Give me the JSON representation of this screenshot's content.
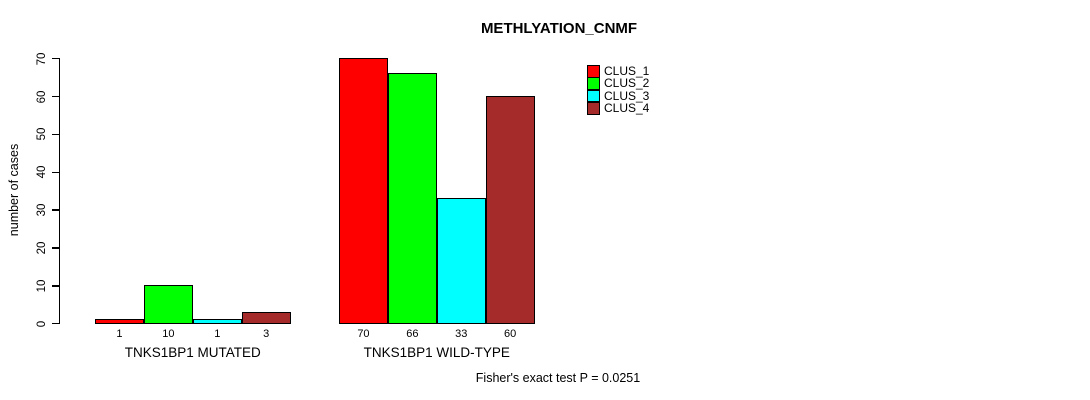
{
  "chart_data": {
    "type": "bar",
    "title": "METHLYATION_CNMF",
    "ylabel": "number of cases",
    "xlabel": "",
    "ylim": [
      0,
      70
    ],
    "yticks": [
      0,
      10,
      20,
      30,
      40,
      50,
      60,
      70
    ],
    "grid": false,
    "legend_position": "top-right",
    "categories": [
      "TNKS1BP1 MUTATED",
      "TNKS1BP1 WILD-TYPE"
    ],
    "series": [
      {
        "name": "CLUS_1",
        "color": "#FF0000",
        "values": [
          1,
          70
        ]
      },
      {
        "name": "CLUS_2",
        "color": "#00FF00",
        "values": [
          10,
          66
        ]
      },
      {
        "name": "CLUS_3",
        "color": "#00FFFF",
        "values": [
          1,
          33
        ]
      },
      {
        "name": "CLUS_4",
        "color": "#A52A2A",
        "values": [
          3,
          60
        ]
      }
    ],
    "bar_value_labels": [
      [
        "1",
        "10",
        "1",
        "3"
      ],
      [
        "70",
        "66",
        "33",
        "60"
      ]
    ],
    "annotation": "Fisher's exact test P = 0.0251"
  }
}
